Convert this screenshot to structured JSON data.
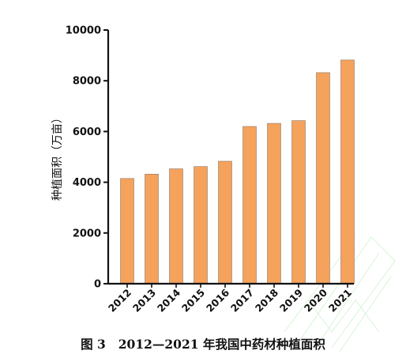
{
  "chart_data": {
    "type": "bar",
    "categories": [
      "2012",
      "2013",
      "2014",
      "2015",
      "2016",
      "2017",
      "2018",
      "2019",
      "2020",
      "2021"
    ],
    "values": [
      4150,
      4320,
      4530,
      4620,
      4830,
      6200,
      6320,
      6430,
      8320,
      8820
    ],
    "ylabel": "种植面积（万亩）",
    "ylim": [
      0,
      10000
    ],
    "yticks": [
      "0",
      "2000",
      "4000",
      "6000",
      "8000",
      "10000"
    ],
    "grid": false,
    "legend": "none",
    "bar_color": "#f5a25d",
    "bar_edge_color": "#8a7a6a"
  },
  "caption": {
    "figure_number": "图 3",
    "text": "2012—2021 年我国中药材种植面积"
  }
}
